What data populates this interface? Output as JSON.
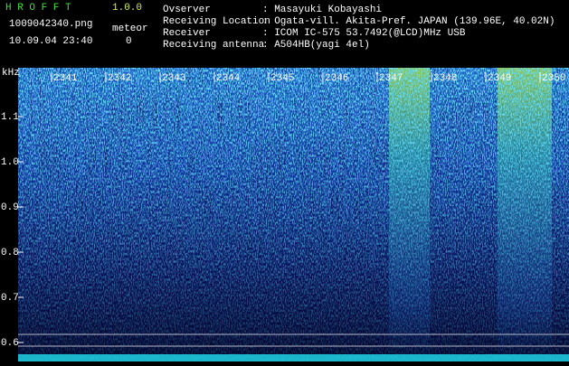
{
  "header": {
    "app": "H R O F F T",
    "version": "1.0.0",
    "file": "1009042340.png",
    "meteor_label": "meteor",
    "timestamp": "10.09.04 23:40",
    "meteor_count": "0",
    "info": [
      {
        "label": "Ovserver",
        "value": ": Masayuki Kobayashi"
      },
      {
        "label": "Receiving Location",
        "value": ": Ogata-vill. Akita-Pref. JAPAN (139.96E, 40.02N)"
      },
      {
        "label": "Receiver",
        "value": ": ICOM IC-575 53.7492(@LCD)MHz USB"
      },
      {
        "label": "Receiving antenna",
        "value": ": A504HB(yagi 4el)"
      }
    ]
  },
  "plot": {
    "y_unit": "kHz",
    "yticks": [
      {
        "value": 1.1,
        "label": "1.1"
      },
      {
        "value": 1,
        "label": "1.0"
      },
      {
        "value": 0.9,
        "label": "0.9"
      },
      {
        "value": 0.8,
        "label": "0.8"
      },
      {
        "value": 0.7,
        "label": "0.7"
      },
      {
        "value": 0.6,
        "label": "0.6"
      }
    ],
    "time_labels": [
      "2341",
      "2342",
      "2343",
      "2344",
      "2345",
      "2346",
      "2347",
      "2348",
      "2349",
      "2350"
    ]
  }
}
